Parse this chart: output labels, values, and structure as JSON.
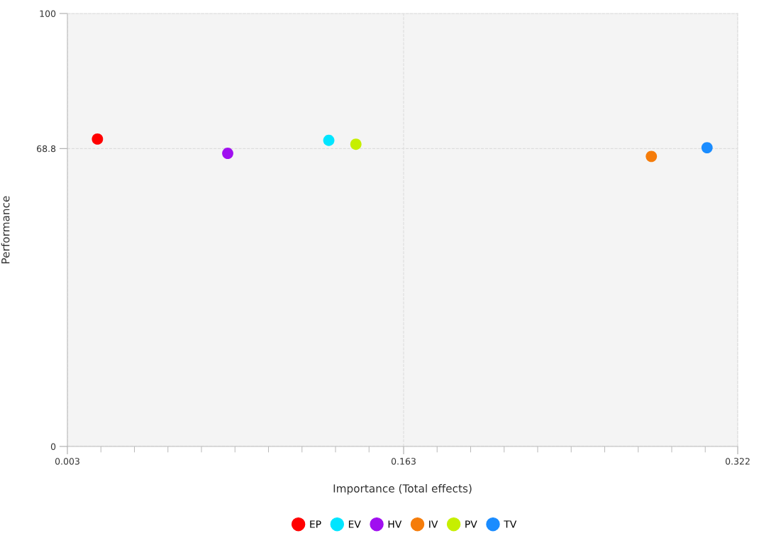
{
  "chart_data": {
    "type": "scatter",
    "xlabel": "Importance (Total effects)",
    "ylabel": "Performance",
    "xlim": [
      0.003,
      0.322
    ],
    "ylim": [
      0,
      100
    ],
    "xticks": [
      0.003,
      {
        "value": 0.01895,
        "label": null
      },
      {
        "value": 0.0349,
        "label": null
      },
      {
        "value": 0.05085,
        "label": null
      },
      {
        "value": 0.0668,
        "label": null
      },
      {
        "value": 0.08275,
        "label": null
      },
      {
        "value": 0.0987,
        "label": null
      },
      {
        "value": 0.11465,
        "label": null
      },
      {
        "value": 0.1306,
        "label": null
      },
      {
        "value": 0.14655,
        "label": null
      },
      0.163,
      {
        "value": 0.17895,
        "label": null
      },
      {
        "value": 0.1949,
        "label": null
      },
      {
        "value": 0.21085,
        "label": null
      },
      {
        "value": 0.2268,
        "label": null
      },
      {
        "value": 0.24275,
        "label": null
      },
      {
        "value": 0.2587,
        "label": null
      },
      {
        "value": 0.27465,
        "label": null
      },
      {
        "value": 0.2906,
        "label": null
      },
      {
        "value": 0.30655,
        "label": null
      },
      0.322
    ],
    "yticks": [
      0,
      68.8,
      100
    ],
    "grid": true,
    "legend": "bottom",
    "marker": "circle",
    "series": [
      {
        "name": "EP",
        "color": "#ff0000",
        "x": [
          0.0173
        ],
        "values": [
          71.0
        ]
      },
      {
        "name": "EV",
        "color": "#00e5ff",
        "x": [
          0.1274
        ],
        "values": [
          70.7
        ]
      },
      {
        "name": "HV",
        "color": "#a00ff0",
        "x": [
          0.0793
        ],
        "values": [
          67.7
        ]
      },
      {
        "name": "IV",
        "color": "#f57c0a",
        "x": [
          0.2809
        ],
        "values": [
          67.0
        ]
      },
      {
        "name": "PV",
        "color": "#c6ef00",
        "x": [
          0.1403
        ],
        "values": [
          69.8
        ]
      },
      {
        "name": "TV",
        "color": "#1a8cff",
        "x": [
          0.3074
        ],
        "values": [
          69.0
        ]
      }
    ]
  }
}
